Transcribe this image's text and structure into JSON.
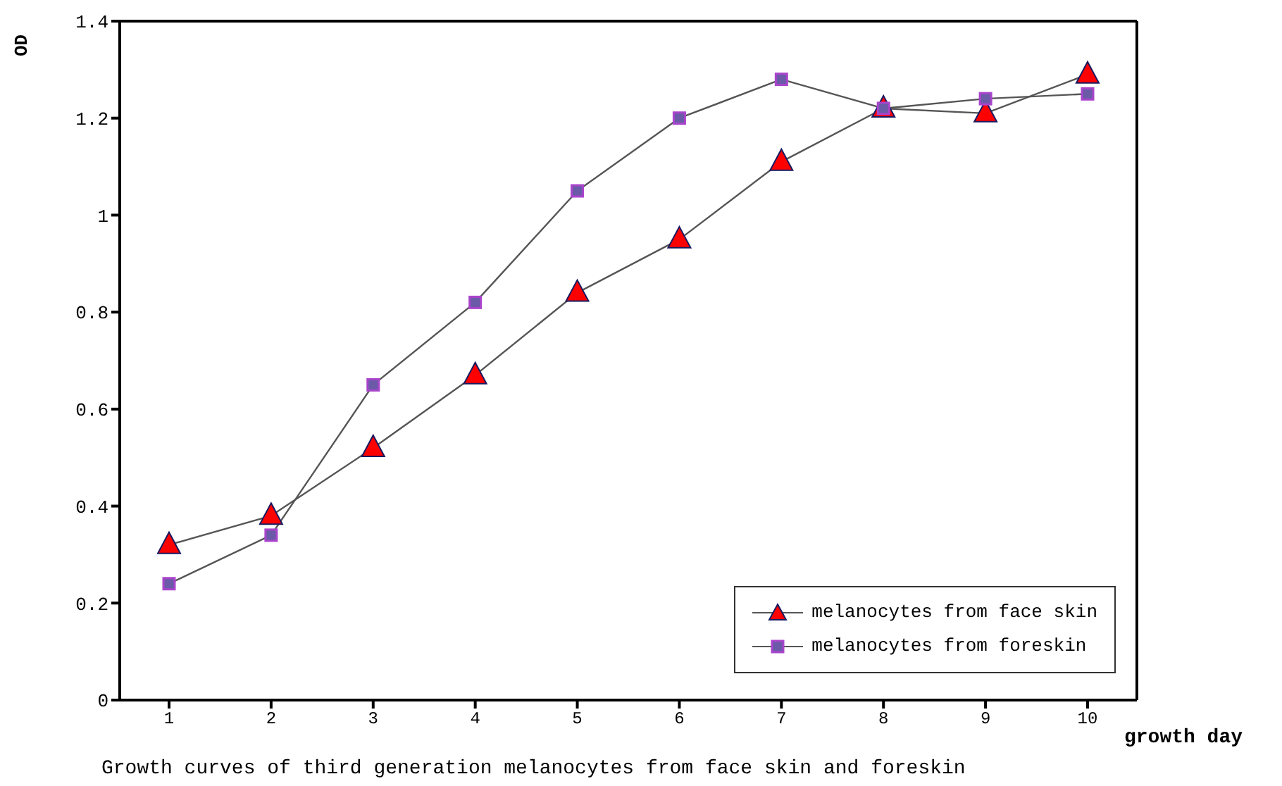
{
  "chart_data": {
    "type": "line",
    "xlabel": "growth day",
    "ylabel": "OD",
    "annotations": [
      "Growth curves of third generation melanocytes from face skin and foreskin"
    ],
    "categories": [
      "1",
      "2",
      "3",
      "4",
      "5",
      "6",
      "7",
      "8",
      "9",
      "10"
    ],
    "series": [
      {
        "name": "melanocytes from face skin",
        "color": "#ff0000",
        "marker": "triangle",
        "values": [
          0.32,
          0.38,
          0.52,
          0.67,
          0.84,
          0.95,
          1.11,
          1.22,
          1.21,
          1.29
        ]
      },
      {
        "name": "melanocytes from foreskin",
        "color": "#aa44cc",
        "marker": "square",
        "values": [
          0.24,
          0.34,
          0.65,
          0.82,
          1.05,
          1.2,
          1.28,
          1.22,
          1.24,
          1.25
        ]
      }
    ],
    "ylim": [
      0,
      1.4
    ],
    "yticks": [
      0,
      0.2,
      0.4,
      0.6,
      0.8,
      1,
      1.2,
      1.4
    ],
    "legend": "bottom right"
  }
}
